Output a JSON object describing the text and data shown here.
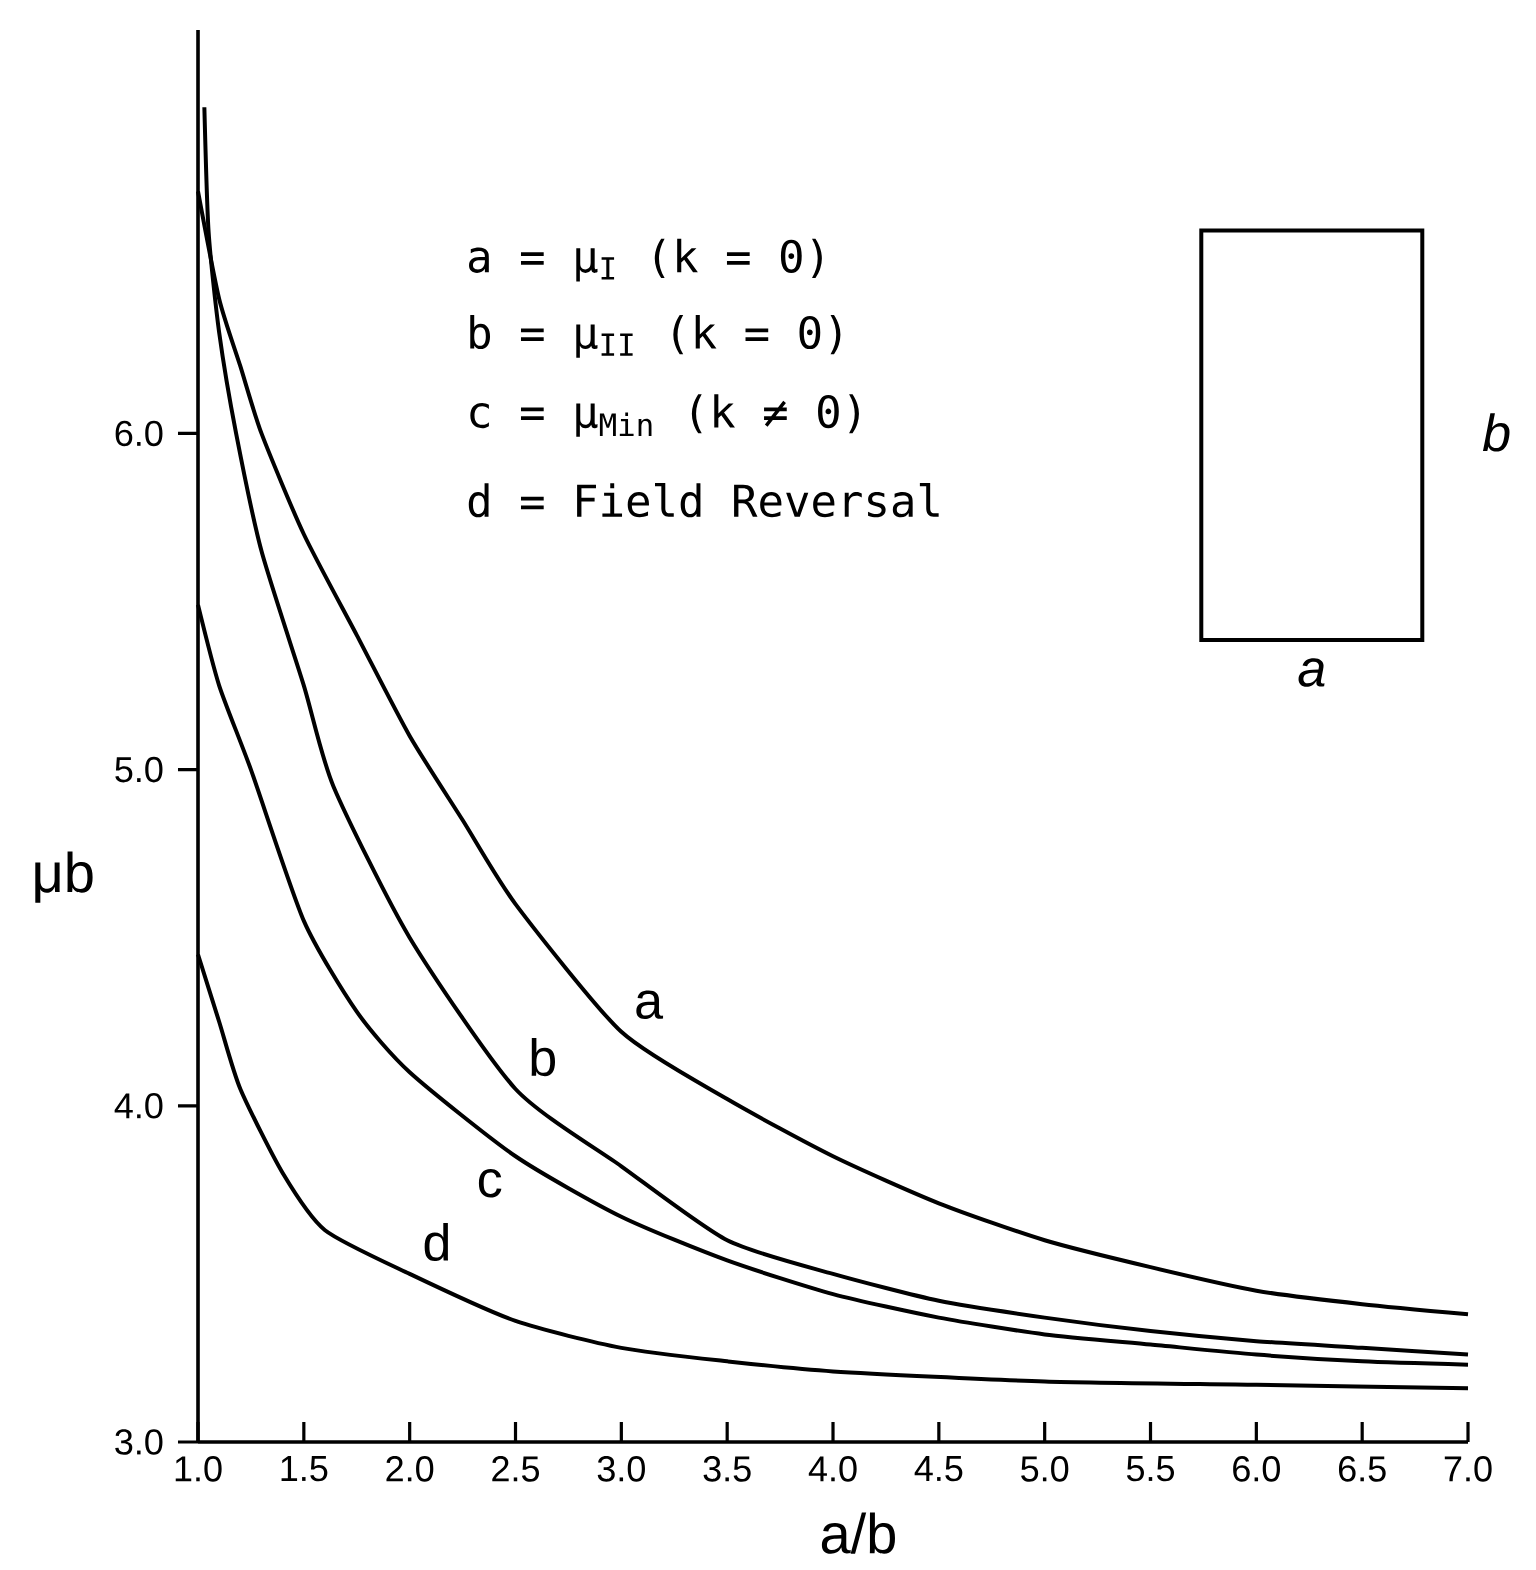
{
  "chart_data": {
    "type": "line",
    "xlabel": "a/b",
    "ylabel": "μb",
    "xlim": [
      1,
      7
    ],
    "ylim": [
      3,
      7.2
    ],
    "xticks": [
      {
        "value": 1,
        "label": "1.0"
      },
      {
        "value": 1.5,
        "label": "1.5"
      },
      {
        "value": 2,
        "label": "2.0"
      },
      {
        "value": 2.5,
        "label": "2.5"
      },
      {
        "value": 3,
        "label": "3.0"
      },
      {
        "value": 3.5,
        "label": "3.5"
      },
      {
        "value": 4,
        "label": "4.0"
      },
      {
        "value": 4.5,
        "label": "4.5"
      },
      {
        "value": 5,
        "label": "5.0"
      },
      {
        "value": 5.5,
        "label": "5.5"
      },
      {
        "value": 6,
        "label": "6.0"
      },
      {
        "value": 6.5,
        "label": "6.5"
      },
      {
        "value": 7,
        "label": "7.0"
      }
    ],
    "yticks": [
      {
        "value": 3,
        "label": "3.0"
      },
      {
        "value": 4,
        "label": "4.0"
      },
      {
        "value": 5,
        "label": "5.0"
      },
      {
        "value": 6,
        "label": "6.0"
      }
    ],
    "marker": "none",
    "line_style": "solid",
    "annotations": [
      "a = μ$_{I}$ (k = 0)",
      "b = μ$_{II}$ (k = 0)",
      "c = μ$_{Min}$ (k ≠ 0)",
      "d = Field Reversal",
      "a",
      "b"
    ],
    "series": [
      {
        "name": "a",
        "color": "#000000",
        "x": [
          1.0,
          1.1,
          1.2,
          1.3,
          1.5,
          1.75,
          2.0,
          2.25,
          2.5,
          3.0,
          3.5,
          4.0,
          4.5,
          5.0,
          5.5,
          6.0,
          6.5,
          7.0
        ],
        "values": [
          6.72,
          6.4,
          6.2,
          6.0,
          5.7,
          5.4,
          5.1,
          4.85,
          4.6,
          4.22,
          4.02,
          3.85,
          3.71,
          3.6,
          3.52,
          3.45,
          3.41,
          3.38
        ]
      },
      {
        "name": "b",
        "color": "#000000",
        "x": [
          1.03,
          1.05,
          1.1,
          1.18,
          1.3,
          1.5,
          1.64,
          2.0,
          2.5,
          3.0,
          3.5,
          4.0,
          4.5,
          5.0,
          5.5,
          6.0,
          6.5,
          7.0
        ],
        "values": [
          6.97,
          6.6,
          6.3,
          6.0,
          5.65,
          5.25,
          4.95,
          4.5,
          4.05,
          3.82,
          3.6,
          3.5,
          3.42,
          3.37,
          3.33,
          3.3,
          3.28,
          3.26
        ]
      },
      {
        "name": "c",
        "color": "#000000",
        "x": [
          1.0,
          1.1,
          1.25,
          1.5,
          1.75,
          2.0,
          2.5,
          3.0,
          3.5,
          4.0,
          4.5,
          5.0,
          5.5,
          6.0,
          6.5,
          7.0
        ],
        "values": [
          5.49,
          5.25,
          5.0,
          4.55,
          4.28,
          4.1,
          3.85,
          3.67,
          3.54,
          3.44,
          3.37,
          3.32,
          3.29,
          3.26,
          3.24,
          3.23
        ]
      },
      {
        "name": "d",
        "color": "#000000",
        "x": [
          1.0,
          1.1,
          1.2,
          1.4,
          1.6,
          2.0,
          2.5,
          3.0,
          3.5,
          4.0,
          5.0,
          6.0,
          7.0
        ],
        "values": [
          4.45,
          4.25,
          4.05,
          3.8,
          3.63,
          3.5,
          3.36,
          3.28,
          3.24,
          3.21,
          3.18,
          3.17,
          3.16
        ]
      }
    ]
  }
}
